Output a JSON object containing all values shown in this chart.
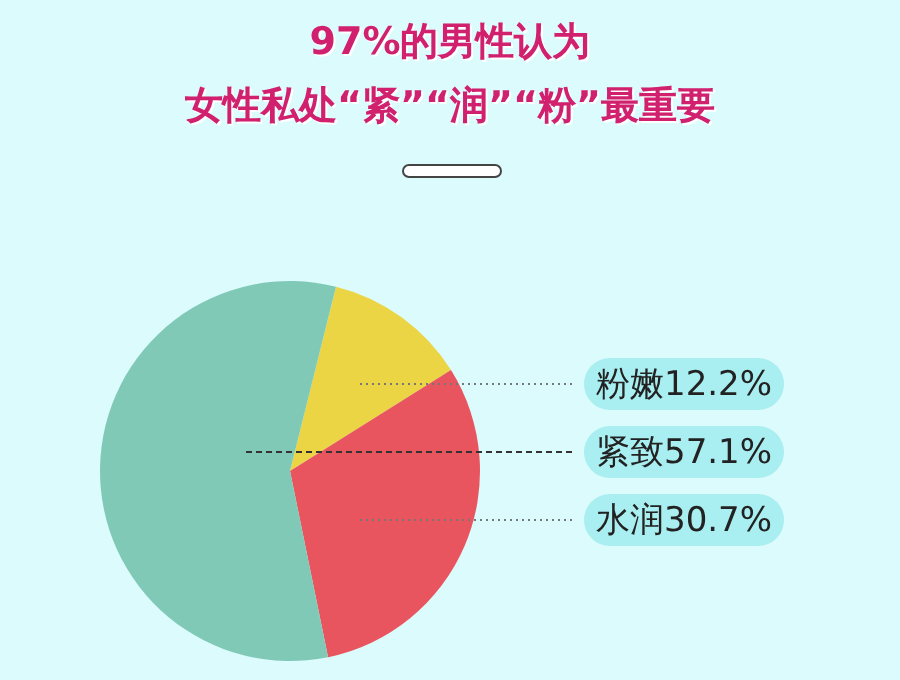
{
  "chart_data": {
    "type": "pie",
    "title": "97%的男性认为",
    "subtitle": "女性私处“紧”“润”“粉”最重要",
    "categories": [
      "粉嫩",
      "水润",
      "紧致"
    ],
    "values": [
      12.2,
      30.7,
      57.1
    ],
    "value_labels": [
      "12.2%",
      "30.7%",
      "57.1%"
    ],
    "colors": [
      "#ebd545",
      "#e8555f",
      "#80c9b7"
    ],
    "legend": false
  }
}
